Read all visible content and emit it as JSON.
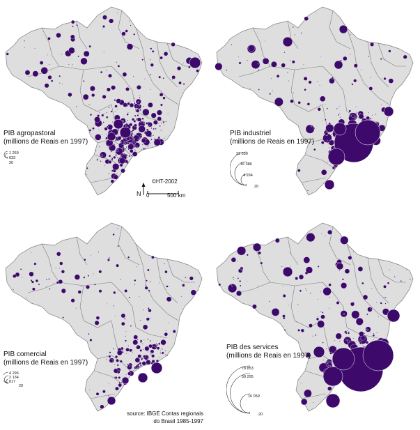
{
  "colors": {
    "land": "#dedede",
    "border": "#7d7d7d",
    "dot": "#3d0a6b",
    "ring": "#ffffff"
  },
  "panels": [
    {
      "id": "agropastoral",
      "title": "PIB agropastoral",
      "subtitle": "(millions de Reais en 1997)",
      "legend_values": [
        "1 269",
        "633",
        "20"
      ]
    },
    {
      "id": "industriel",
      "title": "PIB industriel",
      "subtitle": "(millions de Reais en 1997)",
      "legend_values": [
        "33 350",
        "16 386",
        "4 294",
        "20"
      ]
    },
    {
      "id": "comercial",
      "title": "PIB comercial",
      "subtitle": "(millions de Reais en 1997)",
      "legend_values": [
        "4 296",
        "2 134",
        "817",
        "20"
      ]
    },
    {
      "id": "services",
      "title": "PIB des services",
      "subtitle": "(millions de Reais en 1997)",
      "legend_values": [
        "78 853",
        "59 295",
        "16 059",
        "20"
      ]
    }
  ],
  "credit": "©HT-2002",
  "scale": {
    "north": "N",
    "zero": "0",
    "distance": "500 km"
  },
  "source_lines": [
    "source: IBGE Contas regionais",
    "do Brasil 1985-1997"
  ]
}
